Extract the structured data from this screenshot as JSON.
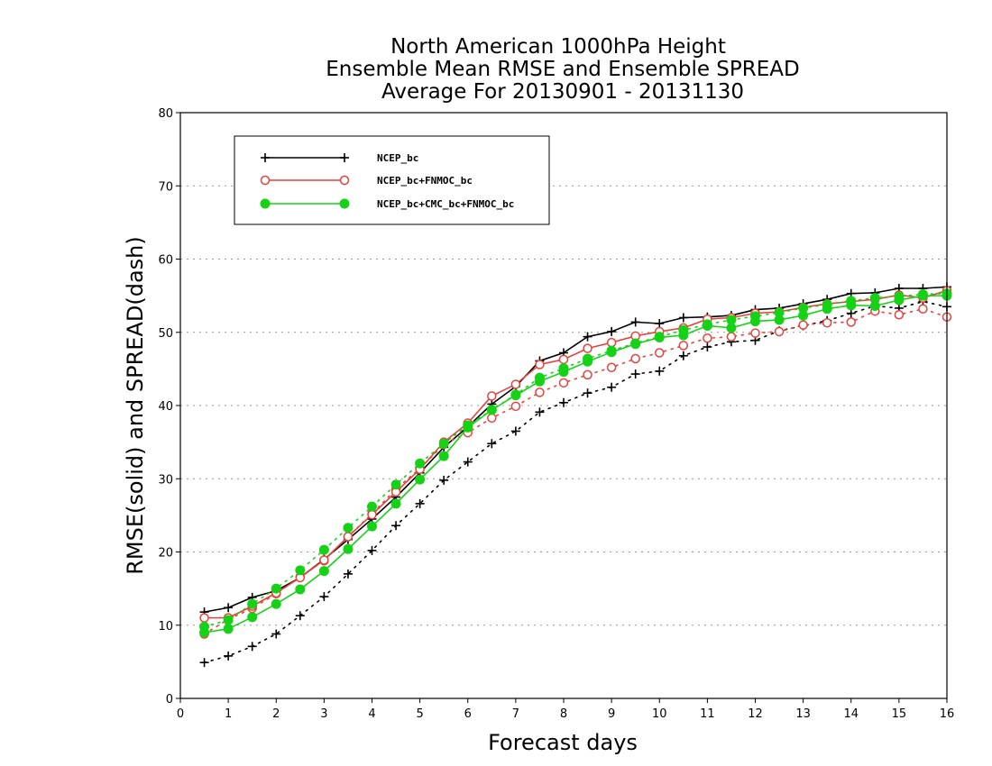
{
  "colors": {
    "NCEP_bc": "#000000",
    "NCEP_bc+FNMOC_bc": "#e8413c",
    "NCEP_bc+CMC_bc+FNMOC_bc": "#16d216",
    "grid": "#999999"
  },
  "chart_data": {
    "type": "line",
    "title": [
      "North American 1000hPa Height",
      "Ensemble Mean RMSE and Ensemble SPREAD",
      "Average For 20130901 - 20131130"
    ],
    "xlabel": "Forecast days",
    "ylabel": "RMSE(solid) and SPREAD(dash)",
    "xlim": [
      0,
      16
    ],
    "ylim": [
      0,
      80
    ],
    "xticks": [
      0,
      1,
      2,
      3,
      4,
      5,
      6,
      7,
      8,
      9,
      10,
      11,
      12,
      13,
      14,
      15,
      16
    ],
    "yticks": [
      0,
      10,
      20,
      30,
      40,
      50,
      60,
      70,
      80
    ],
    "grid": "horizontal dotted",
    "legend_position": "top-left",
    "x": [
      0.5,
      1,
      1.5,
      2,
      2.5,
      3,
      3.5,
      4,
      4.5,
      5,
      5.5,
      6,
      6.5,
      7,
      7.5,
      8,
      8.5,
      9,
      9.5,
      10,
      10.5,
      11,
      11.5,
      12,
      12.5,
      13,
      13.5,
      14,
      14.5,
      15,
      15.5,
      16
    ],
    "series": [
      {
        "name": "NCEP_bc",
        "marker": "plus",
        "rmse": [
          11.8,
          12.4,
          13.8,
          14.7,
          16.5,
          19.0,
          21.7,
          24.5,
          27.5,
          30.8,
          34.3,
          37.1,
          40.2,
          42.6,
          46.1,
          47.2,
          49.4,
          50.1,
          51.4,
          51.2,
          52.0,
          52.1,
          52.3,
          53.1,
          53.3,
          53.9,
          54.5,
          55.3,
          55.4,
          56.0,
          56.0,
          56.2
        ],
        "spread": [
          4.9,
          5.8,
          7.1,
          8.8,
          11.3,
          13.9,
          17.0,
          20.2,
          23.6,
          26.6,
          29.8,
          32.3,
          34.8,
          36.5,
          39.1,
          40.4,
          41.7,
          42.5,
          44.3,
          44.7,
          46.8,
          48.0,
          48.7,
          48.9,
          50.2,
          50.9,
          51.6,
          52.6,
          53.6,
          53.3,
          54.2,
          53.5
        ]
      },
      {
        "name": "NCEP_bc+FNMOC_bc",
        "marker": "open-circle",
        "rmse": [
          11.0,
          11.0,
          12.6,
          14.4,
          16.5,
          18.9,
          22.1,
          25.1,
          28.2,
          31.3,
          35.0,
          37.6,
          41.3,
          42.9,
          45.6,
          46.3,
          47.8,
          48.6,
          49.5,
          50.1,
          50.6,
          51.8,
          52.0,
          52.6,
          52.8,
          53.4,
          53.9,
          54.2,
          54.5,
          55.1,
          54.7,
          55.7
        ],
        "spread": [
          8.8,
          10.8,
          12.3,
          14.3,
          16.6,
          18.8,
          22.1,
          25.2,
          28.6,
          31.4,
          34.7,
          36.3,
          38.3,
          39.9,
          41.8,
          43.1,
          44.2,
          45.2,
          46.4,
          47.2,
          48.2,
          49.2,
          49.4,
          49.9,
          50.1,
          51.0,
          51.3,
          51.4,
          52.9,
          52.4,
          53.2,
          52.1
        ]
      },
      {
        "name": "NCEP_bc+CMC_bc+FNMOC_bc",
        "marker": "filled-circle",
        "rmse": [
          9.0,
          9.5,
          11.1,
          12.9,
          14.9,
          17.4,
          20.4,
          23.5,
          26.6,
          29.9,
          33.1,
          37.0,
          39.4,
          41.4,
          43.3,
          44.6,
          46.0,
          47.3,
          48.4,
          49.3,
          49.6,
          50.9,
          50.6,
          51.5,
          51.7,
          52.3,
          53.2,
          53.7,
          53.6,
          54.4,
          55.0,
          55.0
        ],
        "spread": [
          9.8,
          10.7,
          12.9,
          15.0,
          17.5,
          20.3,
          23.3,
          26.2,
          29.2,
          32.1,
          34.8,
          37.3,
          39.4,
          41.5,
          43.8,
          45.1,
          46.4,
          47.5,
          48.5,
          49.4,
          50.3,
          51.1,
          51.7,
          52.2,
          52.7,
          53.3,
          53.8,
          54.3,
          54.7,
          54.9,
          55.2,
          55.3
        ]
      }
    ]
  }
}
